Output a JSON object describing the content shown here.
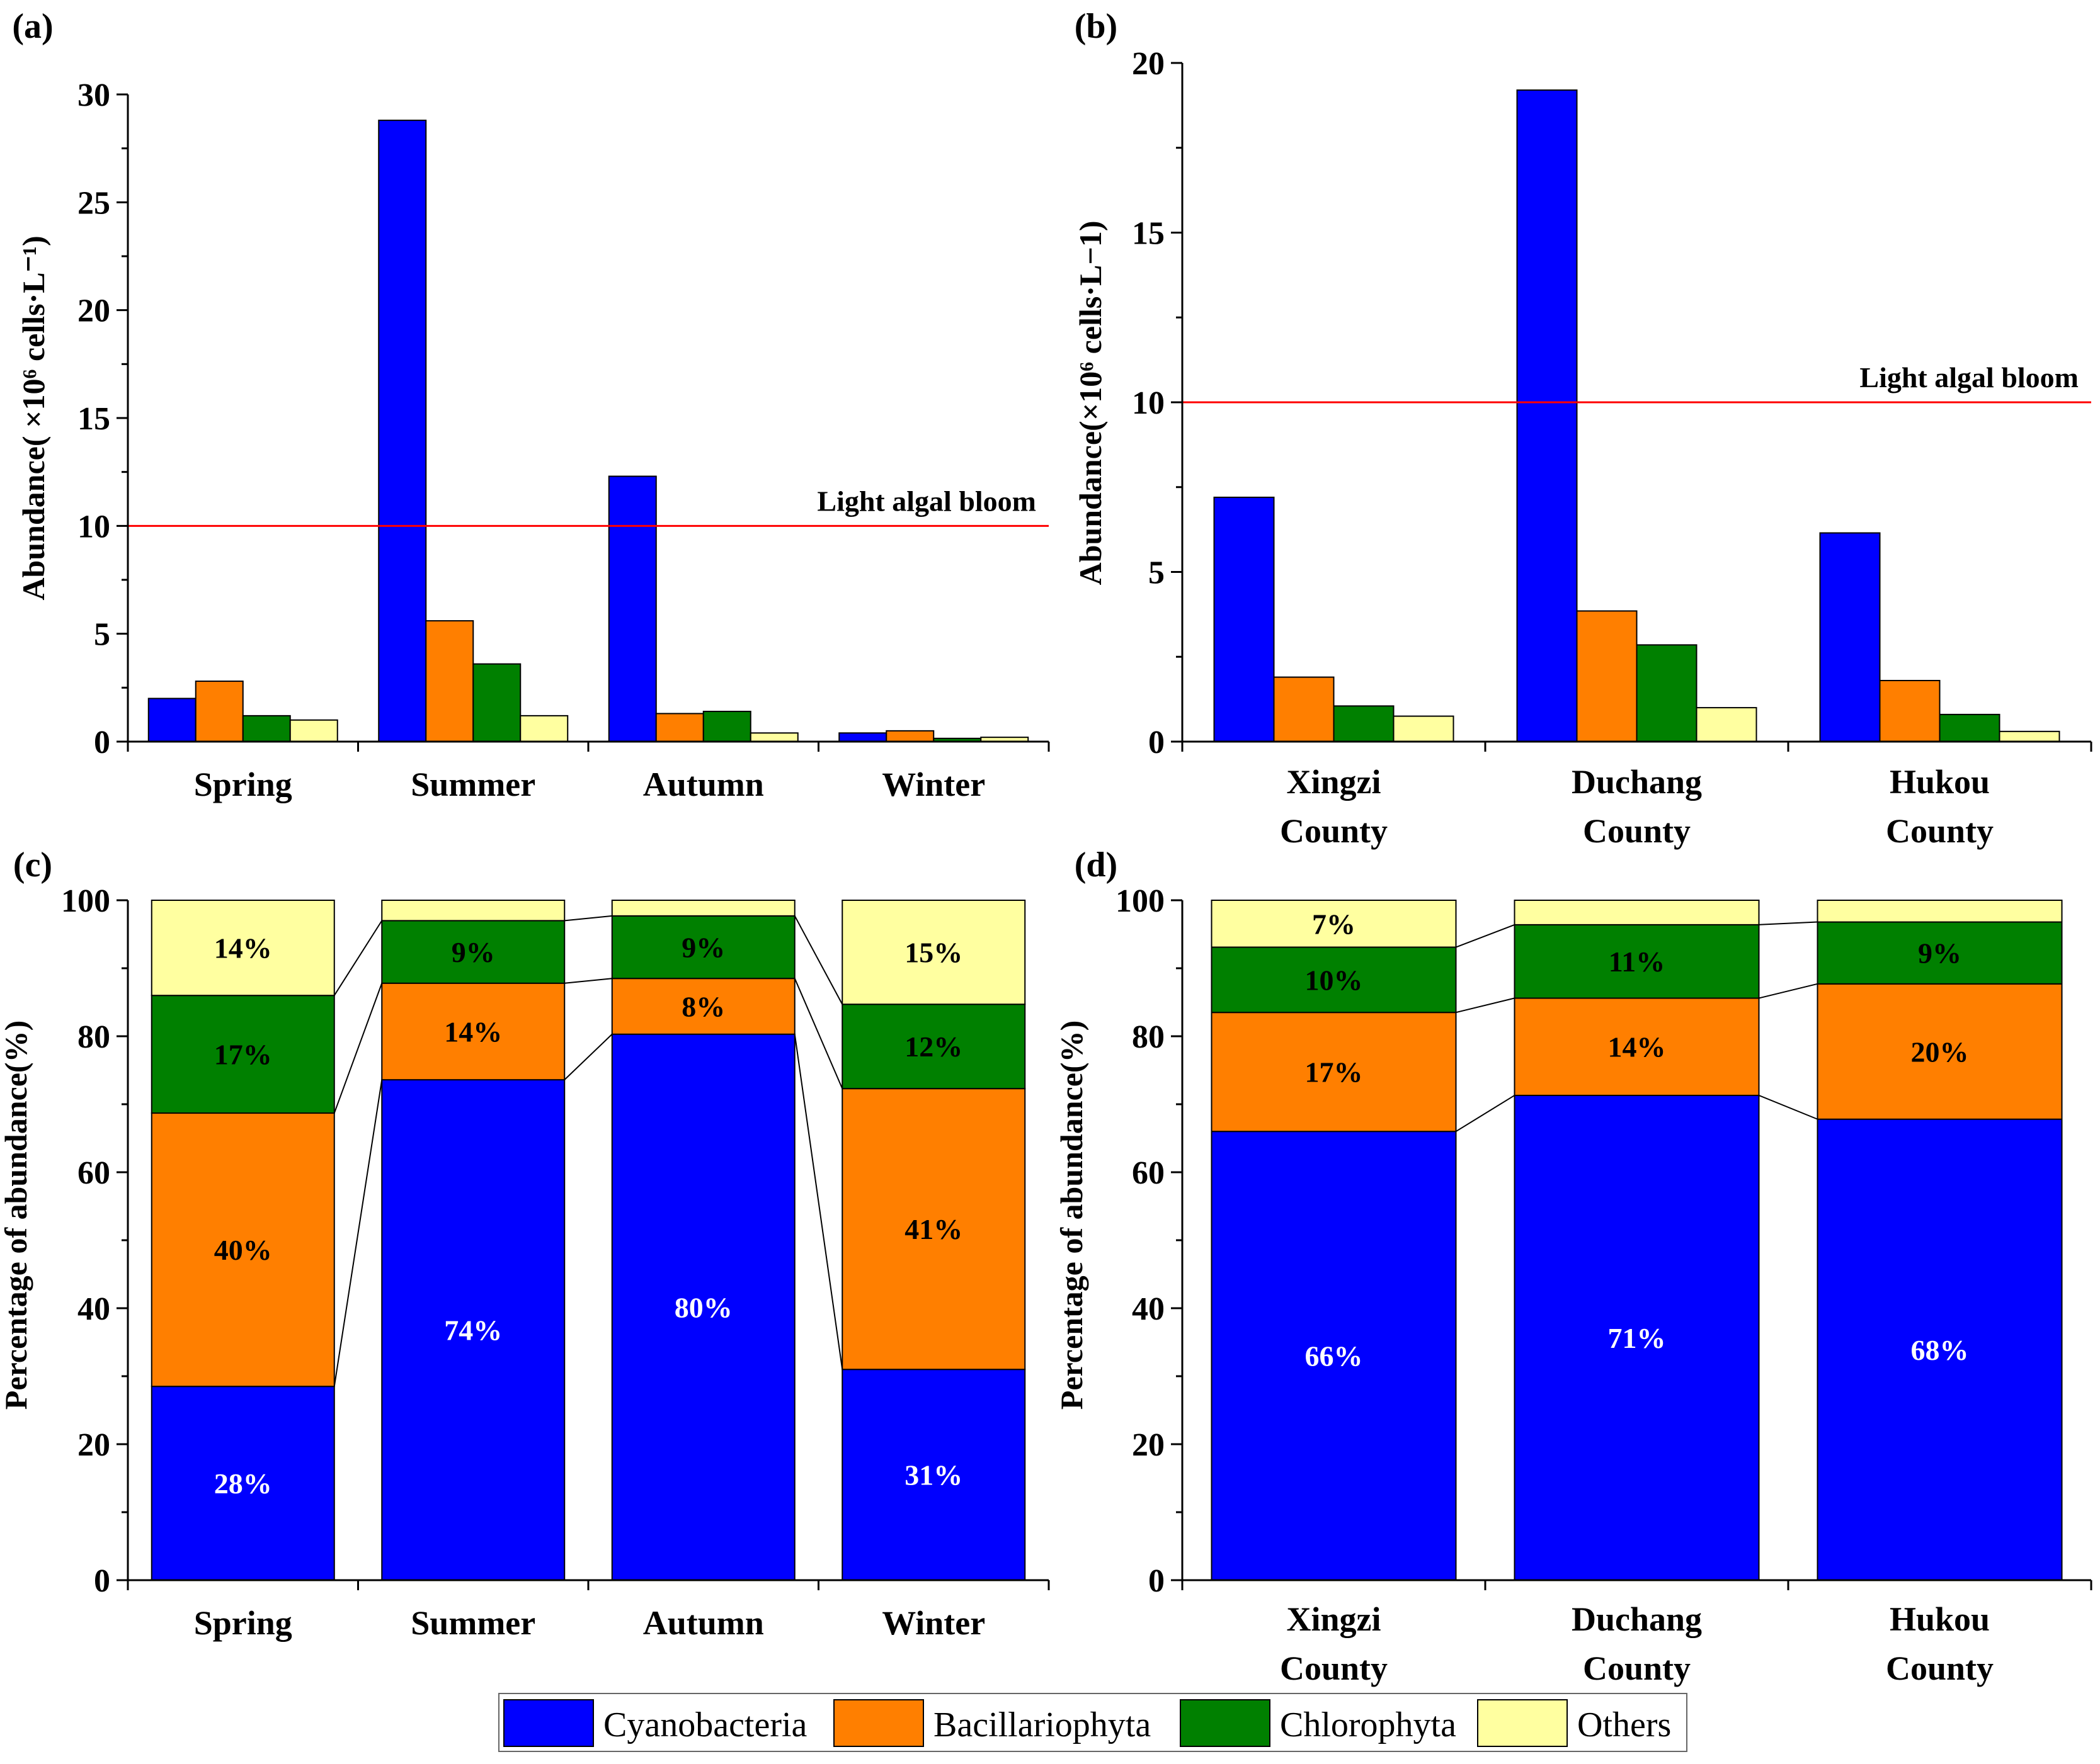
{
  "colors": {
    "Cyanobacteria": "#0000FF",
    "Bacillariophyta": "#FF7F00",
    "Chlorophyta": "#008000",
    "Others": "#FFFFA0",
    "threshold": "#FF0000"
  },
  "legend": [
    "Cyanobacteria",
    "Bacillariophyta",
    "Chlorophyta",
    "Others"
  ],
  "chart_data": [
    {
      "panel": "(a)",
      "type": "bar",
      "categories": [
        [
          "Spring"
        ],
        [
          "Summer"
        ],
        [
          "Autumn"
        ],
        [
          "Winter"
        ]
      ],
      "series": [
        {
          "name": "Cyanobacteria",
          "values": [
            2.0,
            28.8,
            12.3,
            0.4
          ]
        },
        {
          "name": "Bacillariophyta",
          "values": [
            2.8,
            5.6,
            1.3,
            0.5
          ]
        },
        {
          "name": "Chlorophyta",
          "values": [
            1.2,
            3.6,
            1.4,
            0.15
          ]
        },
        {
          "name": "Others",
          "values": [
            1.0,
            1.2,
            0.4,
            0.2
          ]
        }
      ],
      "ylabel": "Abundance( ×10⁶ cells·L⁻¹)",
      "ylim": [
        0,
        30
      ],
      "yticks": [
        0,
        5,
        10,
        15,
        20,
        25,
        30
      ],
      "threshold": {
        "value": 10,
        "label": "Light algal bloom"
      }
    },
    {
      "panel": "(b)",
      "type": "bar",
      "categories": [
        [
          "Xingzi",
          "County"
        ],
        [
          "Duchang",
          "County"
        ],
        [
          "Hukou",
          "County"
        ]
      ],
      "series": [
        {
          "name": "Cyanobacteria",
          "values": [
            7.2,
            19.2,
            6.15
          ]
        },
        {
          "name": "Bacillariophyta",
          "values": [
            1.9,
            3.85,
            1.8
          ]
        },
        {
          "name": "Chlorophyta",
          "values": [
            1.05,
            2.85,
            0.8
          ]
        },
        {
          "name": "Others",
          "values": [
            0.75,
            1.0,
            0.3
          ]
        }
      ],
      "ylabel": "Abundance(×10⁶ cells·L−1)",
      "ylim": [
        0,
        20
      ],
      "yticks": [
        0,
        5,
        10,
        15,
        20
      ],
      "threshold": {
        "value": 10,
        "label": "Light algal bloom"
      }
    },
    {
      "panel": "(c)",
      "type": "bar",
      "stacked": true,
      "categories": [
        [
          "Spring"
        ],
        [
          "Summer"
        ],
        [
          "Autumn"
        ],
        [
          "Winter"
        ]
      ],
      "series": [
        {
          "name": "Cyanobacteria",
          "values": [
            28.5,
            73.6,
            80.3,
            31.0
          ],
          "labels": [
            "28%",
            "74%",
            "80%",
            "31%"
          ]
        },
        {
          "name": "Bacillariophyta",
          "values": [
            40.2,
            14.2,
            8.2,
            41.3
          ],
          "labels": [
            "40%",
            "14%",
            "8%",
            "41%"
          ]
        },
        {
          "name": "Chlorophyta",
          "values": [
            17.3,
            9.2,
            9.2,
            12.4
          ],
          "labels": [
            "17%",
            "9%",
            "9%",
            "12%"
          ]
        },
        {
          "name": "Others",
          "values": [
            14.0,
            3.0,
            2.3,
            15.3
          ],
          "labels": [
            "14%",
            "",
            "",
            "15%"
          ]
        }
      ],
      "ylabel": "Percentage of abundance(%)",
      "ylim": [
        0,
        100
      ],
      "yticks": [
        0,
        20,
        40,
        60,
        80,
        100
      ]
    },
    {
      "panel": "(d)",
      "type": "bar",
      "stacked": true,
      "categories": [
        [
          "Xingzi",
          "County"
        ],
        [
          "Duchang",
          "County"
        ],
        [
          "Hukou",
          "County"
        ]
      ],
      "series": [
        {
          "name": "Cyanobacteria",
          "values": [
            66.0,
            71.3,
            67.8
          ],
          "labels": [
            "66%",
            "71%",
            "68%"
          ]
        },
        {
          "name": "Bacillariophyta",
          "values": [
            17.5,
            14.3,
            19.9
          ],
          "labels": [
            "17%",
            "14%",
            "20%"
          ]
        },
        {
          "name": "Chlorophyta",
          "values": [
            9.6,
            10.8,
            9.1
          ],
          "labels": [
            "10%",
            "11%",
            "9%"
          ]
        },
        {
          "name": "Others",
          "values": [
            6.9,
            3.6,
            3.2
          ],
          "labels": [
            "7%",
            "",
            ""
          ]
        }
      ],
      "ylabel": "Percentage of abundance(%)",
      "ylim": [
        0,
        100
      ],
      "yticks": [
        0,
        20,
        40,
        60,
        80,
        100
      ]
    }
  ]
}
